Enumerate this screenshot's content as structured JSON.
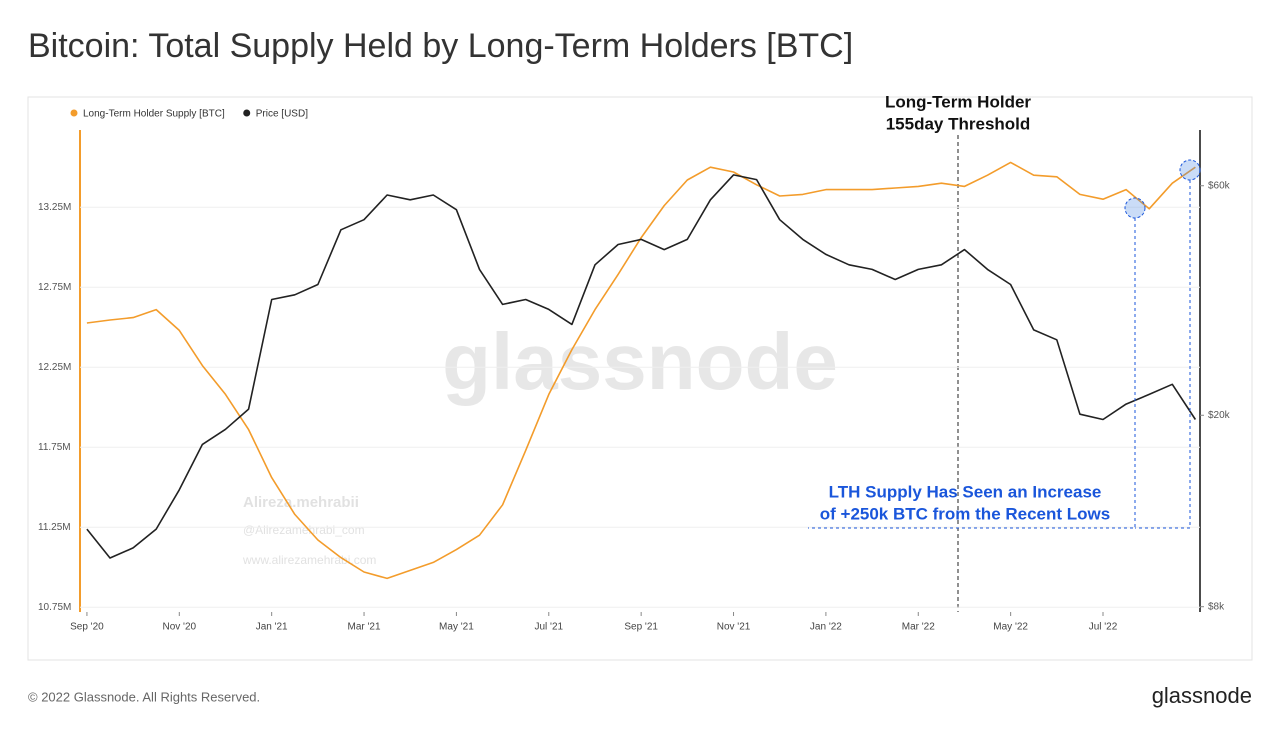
{
  "chart_data": {
    "type": "line",
    "title": "Bitcoin: Total Supply Held by Long-Term Holders [BTC]",
    "annotations": [
      "Long-Term Holder",
      "155day Threshold",
      "LTH Supply Has Seen an Increase",
      "of +250k BTC from the Recent Lows"
    ],
    "watermarks": [
      "glassnode",
      "Alireza.mehrabii",
      "@Alirezamehrabi_com",
      "www.alirezamehrabi.com"
    ],
    "footer": "© 2022 Glassnode. All Rights Reserved.",
    "brand": "glassnode",
    "x": [
      0,
      0.5,
      1,
      1.5,
      2,
      2.5,
      3,
      3.5,
      4,
      4.5,
      5,
      5.5,
      6,
      6.5,
      7,
      7.5,
      8,
      8.5,
      9,
      9.5,
      10,
      10.5,
      11,
      11.5,
      12,
      12.5,
      13,
      13.5,
      14,
      14.5,
      15,
      15.5,
      16,
      16.5,
      17,
      17.5,
      18,
      18.5,
      19,
      19.5,
      20,
      20.5,
      21,
      21.5,
      22,
      22.5,
      23,
      23.5,
      24
    ],
    "xlim": [
      -0.15,
      24.1
    ],
    "xticks": [
      {
        "value": 0,
        "label": "Sep '20"
      },
      {
        "value": 2,
        "label": "Nov '20"
      },
      {
        "value": 4,
        "label": "Jan '21"
      },
      {
        "value": 6,
        "label": "Mar '21"
      },
      {
        "value": 8,
        "label": "May '21"
      },
      {
        "value": 10,
        "label": "Jul '21"
      },
      {
        "value": 12,
        "label": "Sep '21"
      },
      {
        "value": 14,
        "label": "Nov '21"
      },
      {
        "value": 16,
        "label": "Jan '22"
      },
      {
        "value": 18,
        "label": "Mar '22"
      },
      {
        "value": 20,
        "label": "May '22"
      },
      {
        "value": 22,
        "label": "Jul '22"
      }
    ],
    "ylim": [
      10720000,
      13720000
    ],
    "yticks": [
      {
        "value": 10750000,
        "label": "10.75M"
      },
      {
        "value": 11250000,
        "label": "11.25M"
      },
      {
        "value": 11750000,
        "label": "11.75M"
      },
      {
        "value": 12250000,
        "label": "12.25M"
      },
      {
        "value": 12750000,
        "label": "12.75M"
      },
      {
        "value": 13250000,
        "label": "13.25M"
      }
    ],
    "y2lim": [
      7800,
      77600
    ],
    "y2ticks": [
      {
        "value": 8000,
        "label": "$8k"
      },
      {
        "value": 20000,
        "label": "$20k"
      },
      {
        "value": 60000,
        "label": "$60k"
      }
    ],
    "y2_log": true,
    "grid": true,
    "legend": "top-left",
    "series": [
      {
        "name": "Long-Term Holder Supply [BTC]",
        "color": "#f39c2b",
        "values": [
          12526000,
          12545000,
          12560000,
          12610000,
          12480000,
          12260000,
          12080000,
          11860000,
          11560000,
          11330000,
          11170000,
          11060000,
          10970000,
          10930000,
          10980000,
          11030000,
          11110000,
          11200000,
          11390000,
          11730000,
          12080000,
          12360000,
          12610000,
          12830000,
          13060000,
          13260000,
          13420000,
          13500000,
          13470000,
          13390000,
          13320000,
          13330000,
          13360000,
          13360000,
          13360000,
          13370000,
          13380000,
          13400000,
          13380000,
          13450000,
          13530000,
          13450000,
          13440000,
          13330000,
          13300000,
          13360000,
          13240000,
          13400000,
          13500000
        ]
      },
      {
        "name": "Price [USD]",
        "color": "#222222",
        "axis": "y2",
        "values": [
          11600,
          10100,
          10600,
          11600,
          14000,
          17400,
          18700,
          20600,
          34800,
          35600,
          37400,
          48600,
          51000,
          57400,
          56100,
          57400,
          53500,
          40200,
          34000,
          34800,
          33200,
          30900,
          41100,
          45300,
          46400,
          44200,
          46400,
          56100,
          63200,
          61800,
          51000,
          46400,
          43200,
          41100,
          40200,
          38300,
          40200,
          41100,
          44200,
          40200,
          37400,
          30100,
          28700,
          20100,
          19600,
          21100,
          22100,
          23200,
          19600
        ]
      }
    ]
  }
}
